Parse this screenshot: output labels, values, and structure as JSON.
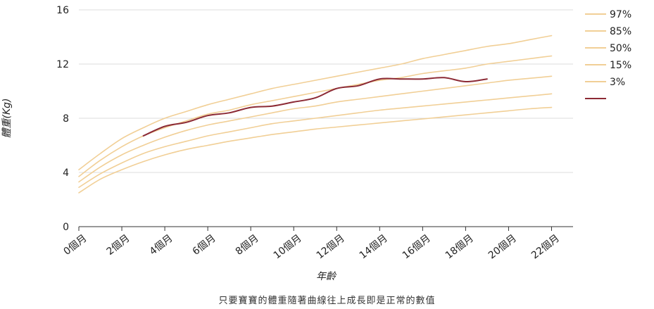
{
  "chart_data": {
    "type": "line",
    "xlabel": "年齡",
    "ylabel": "體重(Kg)",
    "x_tick_labels": [
      "0個月",
      "2個月",
      "4個月",
      "6個月",
      "8個月",
      "10個月",
      "12個月",
      "14個月",
      "16個月",
      "18個月",
      "20個月",
      "22個月"
    ],
    "x_tick_values": [
      0,
      2,
      4,
      6,
      8,
      10,
      12,
      14,
      16,
      18,
      20,
      22
    ],
    "y_tick_labels": [
      "0",
      "4",
      "8",
      "12",
      "16"
    ],
    "y_tick_values": [
      0,
      4,
      8,
      12,
      16
    ],
    "xlim": [
      0,
      23
    ],
    "ylim": [
      0,
      16
    ],
    "grid": "horizontal",
    "legend_position": "right",
    "colors": {
      "percentile": "#f1cf96",
      "baby": "#8c2a35",
      "grid": "#dcdcdc",
      "axis": "#333333"
    },
    "series": [
      {
        "name": "97%",
        "x": [
          0,
          1,
          2,
          3,
          4,
          5,
          6,
          7,
          8,
          9,
          10,
          11,
          12,
          13,
          14,
          15,
          16,
          17,
          18,
          19,
          20,
          21,
          22
        ],
        "values": [
          4.2,
          5.4,
          6.5,
          7.3,
          8.0,
          8.5,
          9.0,
          9.4,
          9.8,
          10.2,
          10.5,
          10.8,
          11.1,
          11.4,
          11.7,
          12.0,
          12.4,
          12.7,
          13.0,
          13.3,
          13.5,
          13.8,
          14.1
        ]
      },
      {
        "name": "85%",
        "x": [
          0,
          1,
          2,
          3,
          4,
          5,
          6,
          7,
          8,
          9,
          10,
          11,
          12,
          13,
          14,
          15,
          16,
          17,
          18,
          19,
          20,
          21,
          22
        ],
        "values": [
          3.7,
          4.9,
          5.9,
          6.7,
          7.3,
          7.8,
          8.3,
          8.6,
          9.0,
          9.3,
          9.6,
          9.9,
          10.2,
          10.5,
          10.8,
          11.0,
          11.3,
          11.5,
          11.7,
          12.0,
          12.2,
          12.4,
          12.6
        ]
      },
      {
        "name": "50%",
        "x": [
          0,
          1,
          2,
          3,
          4,
          5,
          6,
          7,
          8,
          9,
          10,
          11,
          12,
          13,
          14,
          15,
          16,
          17,
          18,
          19,
          20,
          21,
          22
        ],
        "values": [
          3.3,
          4.4,
          5.3,
          6.0,
          6.6,
          7.1,
          7.5,
          7.8,
          8.1,
          8.4,
          8.7,
          8.9,
          9.2,
          9.4,
          9.6,
          9.8,
          10.0,
          10.2,
          10.4,
          10.6,
          10.8,
          10.95,
          11.1
        ]
      },
      {
        "name": "15%",
        "x": [
          0,
          1,
          2,
          3,
          4,
          5,
          6,
          7,
          8,
          9,
          10,
          11,
          12,
          13,
          14,
          15,
          16,
          17,
          18,
          19,
          20,
          21,
          22
        ],
        "values": [
          2.9,
          3.9,
          4.7,
          5.4,
          5.9,
          6.3,
          6.7,
          7.0,
          7.3,
          7.6,
          7.8,
          8.0,
          8.2,
          8.4,
          8.6,
          8.75,
          8.9,
          9.05,
          9.2,
          9.35,
          9.5,
          9.65,
          9.8
        ]
      },
      {
        "name": "3%",
        "x": [
          0,
          1,
          2,
          3,
          4,
          5,
          6,
          7,
          8,
          9,
          10,
          11,
          12,
          13,
          14,
          15,
          16,
          17,
          18,
          19,
          20,
          21,
          22
        ],
        "values": [
          2.5,
          3.5,
          4.2,
          4.8,
          5.3,
          5.7,
          6.0,
          6.3,
          6.55,
          6.8,
          7.0,
          7.2,
          7.35,
          7.5,
          7.65,
          7.8,
          7.95,
          8.1,
          8.25,
          8.4,
          8.55,
          8.7,
          8.8
        ]
      },
      {
        "name": "",
        "x": [
          3,
          4,
          5,
          6,
          7,
          8,
          9,
          10,
          11,
          12,
          13,
          14,
          15,
          16,
          17,
          18,
          19
        ],
        "values": [
          6.7,
          7.4,
          7.7,
          8.2,
          8.4,
          8.8,
          8.9,
          9.2,
          9.5,
          10.2,
          10.4,
          10.9,
          10.9,
          10.9,
          11.0,
          10.7,
          10.9
        ]
      }
    ]
  },
  "caption": "只要寶寶的體重隨著曲線往上成長即是正常的數值"
}
